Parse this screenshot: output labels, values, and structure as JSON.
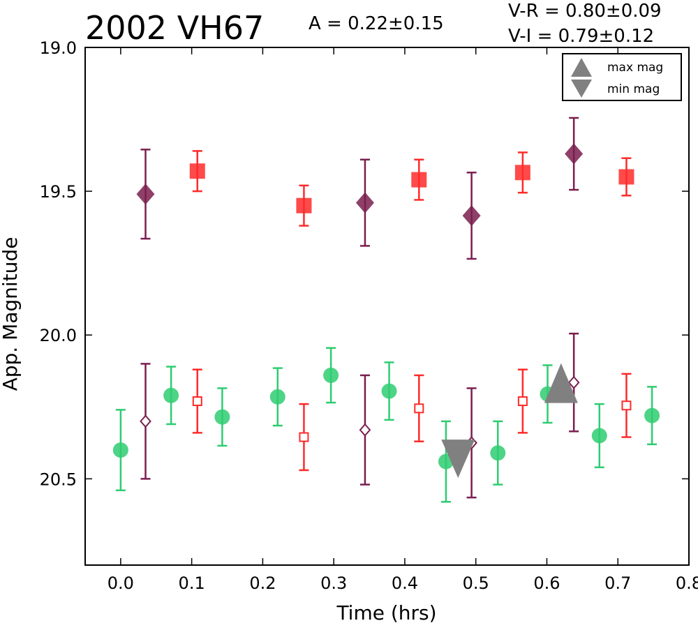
{
  "header": {
    "object_name": "2002 VH67",
    "amplitude": "A  = 0.22±0.15",
    "v_minus_r": "V-R = 0.80±0.09",
    "v_minus_i": "V-I  = 0.79±0.12"
  },
  "legend": {
    "max_label": "max mag",
    "min_label": "min mag",
    "marker_color": "#808080"
  },
  "chart_data": {
    "type": "scatter",
    "xlabel": "Time (hrs)",
    "ylabel": "App. Magnitude",
    "xlim": [
      -0.05,
      0.8
    ],
    "ylim": [
      20.8,
      19.0
    ],
    "y_inverted": true,
    "xticks": [
      "0.0",
      "0.1",
      "0.2",
      "0.3",
      "0.4",
      "0.5",
      "0.6",
      "0.7",
      "0.8"
    ],
    "yticks": [
      "19.0",
      "19.5",
      "20.0",
      "20.5"
    ],
    "legend_position": "top-right",
    "series": [
      {
        "name": "",
        "marker": "square-filled",
        "color": "#ff2a2a",
        "points": [
          {
            "x": 0.108,
            "y": 19.43,
            "err": 0.07
          },
          {
            "x": 0.258,
            "y": 19.55,
            "err": 0.07
          },
          {
            "x": 0.42,
            "y": 19.46,
            "err": 0.07
          },
          {
            "x": 0.566,
            "y": 19.435,
            "err": 0.07
          },
          {
            "x": 0.712,
            "y": 19.45,
            "err": 0.065
          }
        ]
      },
      {
        "name": "",
        "marker": "diamond-filled",
        "color": "#7a1e4e",
        "points": [
          {
            "x": 0.035,
            "y": 19.51,
            "err": 0.155
          },
          {
            "x": 0.344,
            "y": 19.54,
            "err": 0.15
          },
          {
            "x": 0.494,
            "y": 19.585,
            "err": 0.15
          },
          {
            "x": 0.638,
            "y": 19.37,
            "err": 0.125
          }
        ]
      },
      {
        "name": "",
        "marker": "circle-filled",
        "color": "#2ecc71",
        "points": [
          {
            "x": 0.0,
            "y": 20.4,
            "err": 0.14
          },
          {
            "x": 0.071,
            "y": 20.21,
            "err": 0.1
          },
          {
            "x": 0.143,
            "y": 20.285,
            "err": 0.1
          },
          {
            "x": 0.221,
            "y": 20.215,
            "err": 0.1
          },
          {
            "x": 0.296,
            "y": 20.14,
            "err": 0.095
          },
          {
            "x": 0.378,
            "y": 20.195,
            "err": 0.1
          },
          {
            "x": 0.458,
            "y": 20.44,
            "err": 0.14
          },
          {
            "x": 0.531,
            "y": 20.41,
            "err": 0.11
          },
          {
            "x": 0.601,
            "y": 20.205,
            "err": 0.1
          },
          {
            "x": 0.674,
            "y": 20.35,
            "err": 0.11
          },
          {
            "x": 0.748,
            "y": 20.28,
            "err": 0.1
          }
        ]
      },
      {
        "name": "",
        "marker": "square-open",
        "color": "#ff2a2a",
        "points": [
          {
            "x": 0.108,
            "y": 20.23,
            "err": 0.11
          },
          {
            "x": 0.258,
            "y": 20.355,
            "err": 0.115
          },
          {
            "x": 0.42,
            "y": 20.255,
            "err": 0.115
          },
          {
            "x": 0.566,
            "y": 20.23,
            "err": 0.11
          },
          {
            "x": 0.712,
            "y": 20.245,
            "err": 0.11
          }
        ]
      },
      {
        "name": "",
        "marker": "diamond-open",
        "color": "#7a1e4e",
        "points": [
          {
            "x": 0.035,
            "y": 20.3,
            "err": 0.2
          },
          {
            "x": 0.344,
            "y": 20.33,
            "err": 0.19
          },
          {
            "x": 0.494,
            "y": 20.375,
            "err": 0.19
          },
          {
            "x": 0.638,
            "y": 20.165,
            "err": 0.17
          }
        ]
      }
    ],
    "markers": [
      {
        "name": "max mag",
        "shape": "triangle-up",
        "x": 0.62,
        "y": 20.2
      },
      {
        "name": "min mag",
        "shape": "triangle-down",
        "x": 0.475,
        "y": 20.4
      }
    ]
  }
}
